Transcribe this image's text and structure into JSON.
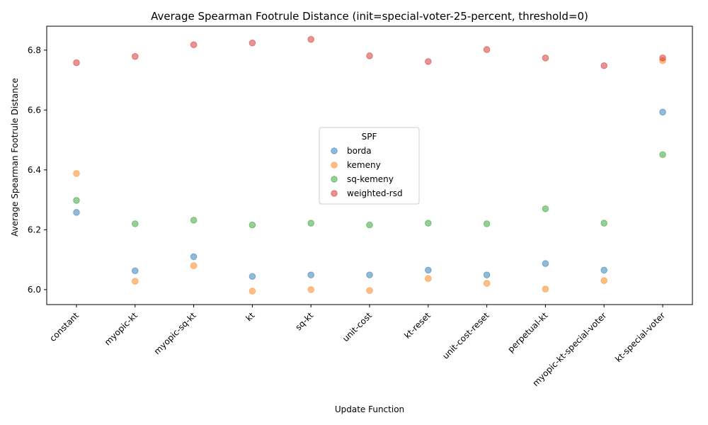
{
  "chart_data": {
    "type": "scatter",
    "title": "Average Spearman Footrule Distance (init=special-voter-25-percent, threshold=0)",
    "xlabel": "Update Function",
    "ylabel": "Average Spearman Footrule Distance",
    "categories": [
      "constant",
      "myopic-kt",
      "myopic-sq-kt",
      "kt",
      "sq-kt",
      "unit-cost",
      "kt-reset",
      "unit-cost-reset",
      "perpetual-kt",
      "myopic-kt-special-voter",
      "kt-special-voter"
    ],
    "ylim": [
      5.95,
      6.88
    ],
    "yticks": [
      "6.0",
      "6.2",
      "6.4",
      "6.6",
      "6.8"
    ],
    "grid": false,
    "legend": {
      "title": "SPF",
      "position": "center"
    },
    "series": [
      {
        "name": "borda",
        "color": "#1f77b4",
        "values": [
          6.258,
          6.063,
          6.11,
          6.044,
          6.049,
          6.049,
          6.065,
          6.049,
          6.087,
          6.065,
          6.593
        ]
      },
      {
        "name": "kemeny",
        "color": "#ff7f0e",
        "values": [
          6.388,
          6.028,
          6.08,
          5.995,
          6.0,
          5.997,
          6.037,
          6.021,
          6.002,
          6.03,
          6.765
        ]
      },
      {
        "name": "sq-kemeny",
        "color": "#2ca02c",
        "values": [
          6.298,
          6.22,
          6.232,
          6.216,
          6.222,
          6.216,
          6.222,
          6.22,
          6.27,
          6.222,
          6.451
        ]
      },
      {
        "name": "weighted-rsd",
        "color": "#d62728",
        "values": [
          6.758,
          6.779,
          6.818,
          6.824,
          6.836,
          6.781,
          6.762,
          6.802,
          6.774,
          6.748,
          6.774
        ]
      }
    ]
  }
}
